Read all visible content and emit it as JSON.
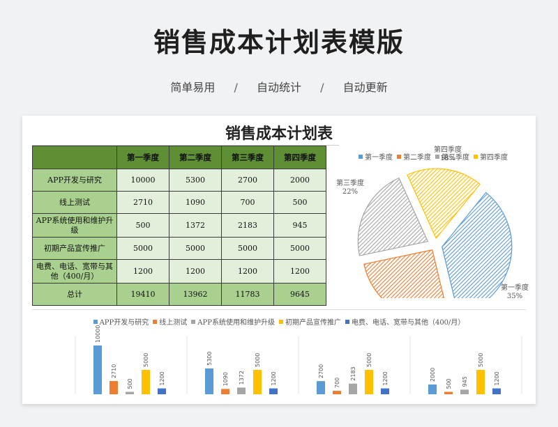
{
  "header": {
    "title": "销售成本计划表模版",
    "tagline": [
      "简单易用",
      "自动统计",
      "自动更新"
    ],
    "separator": "/"
  },
  "sheet": {
    "title": "销售成本计划表",
    "columns": [
      "第一季度",
      "第二季度",
      "第三季度",
      "第四季度"
    ],
    "rows": [
      {
        "label": "APP开发与研究",
        "values": [
          "10000",
          "5300",
          "2700",
          "2000"
        ]
      },
      {
        "label": "线上测试",
        "values": [
          "2710",
          "1090",
          "700",
          "500"
        ]
      },
      {
        "label": "APP系统使用和维护升级",
        "values": [
          "500",
          "1372",
          "2183",
          "945"
        ]
      },
      {
        "label": "初期产品宣传推广",
        "values": [
          "5000",
          "5000",
          "5000",
          "5000"
        ]
      },
      {
        "label": "电费、电话、宽带与其他（400/月）",
        "values": [
          "1200",
          "1200",
          "1200",
          "1200"
        ]
      }
    ],
    "total": {
      "label": "总计",
      "values": [
        "19410",
        "13962",
        "11783",
        "9645"
      ]
    }
  },
  "chart_data": [
    {
      "type": "pie",
      "title": "",
      "categories": [
        "第一季度",
        "第二季度",
        "第三季度",
        "第四季度"
      ],
      "values": [
        19410,
        13962,
        11783,
        9645
      ],
      "percent_labels": [
        "35%",
        "25%",
        "22%",
        "18%"
      ],
      "colors": [
        "#5b9bd5",
        "#ed7d31",
        "#a5a5a5",
        "#ffc000"
      ],
      "legend": "top"
    },
    {
      "type": "bar",
      "title": "",
      "categories": [
        "第一季度",
        "第二季度",
        "第三季度",
        "第四季度"
      ],
      "series": [
        {
          "name": "APP开发与研究",
          "values": [
            10000,
            5300,
            2700,
            2000
          ],
          "color": "#5b9bd5"
        },
        {
          "name": "线上测试",
          "values": [
            2710,
            1090,
            700,
            500
          ],
          "color": "#ed7d31"
        },
        {
          "name": "APP系统使用和维护升级",
          "values": [
            500,
            1372,
            2183,
            945
          ],
          "color": "#a5a5a5"
        },
        {
          "name": "初期产品宣传推广",
          "values": [
            5000,
            5000,
            5000,
            5000
          ],
          "color": "#ffc000"
        },
        {
          "name": "电费、电话、宽带与其他（400/月）",
          "values": [
            1200,
            1200,
            1200,
            1200
          ],
          "color": "#4472c4"
        }
      ],
      "legend": "top",
      "data_labels": "rotated"
    }
  ]
}
